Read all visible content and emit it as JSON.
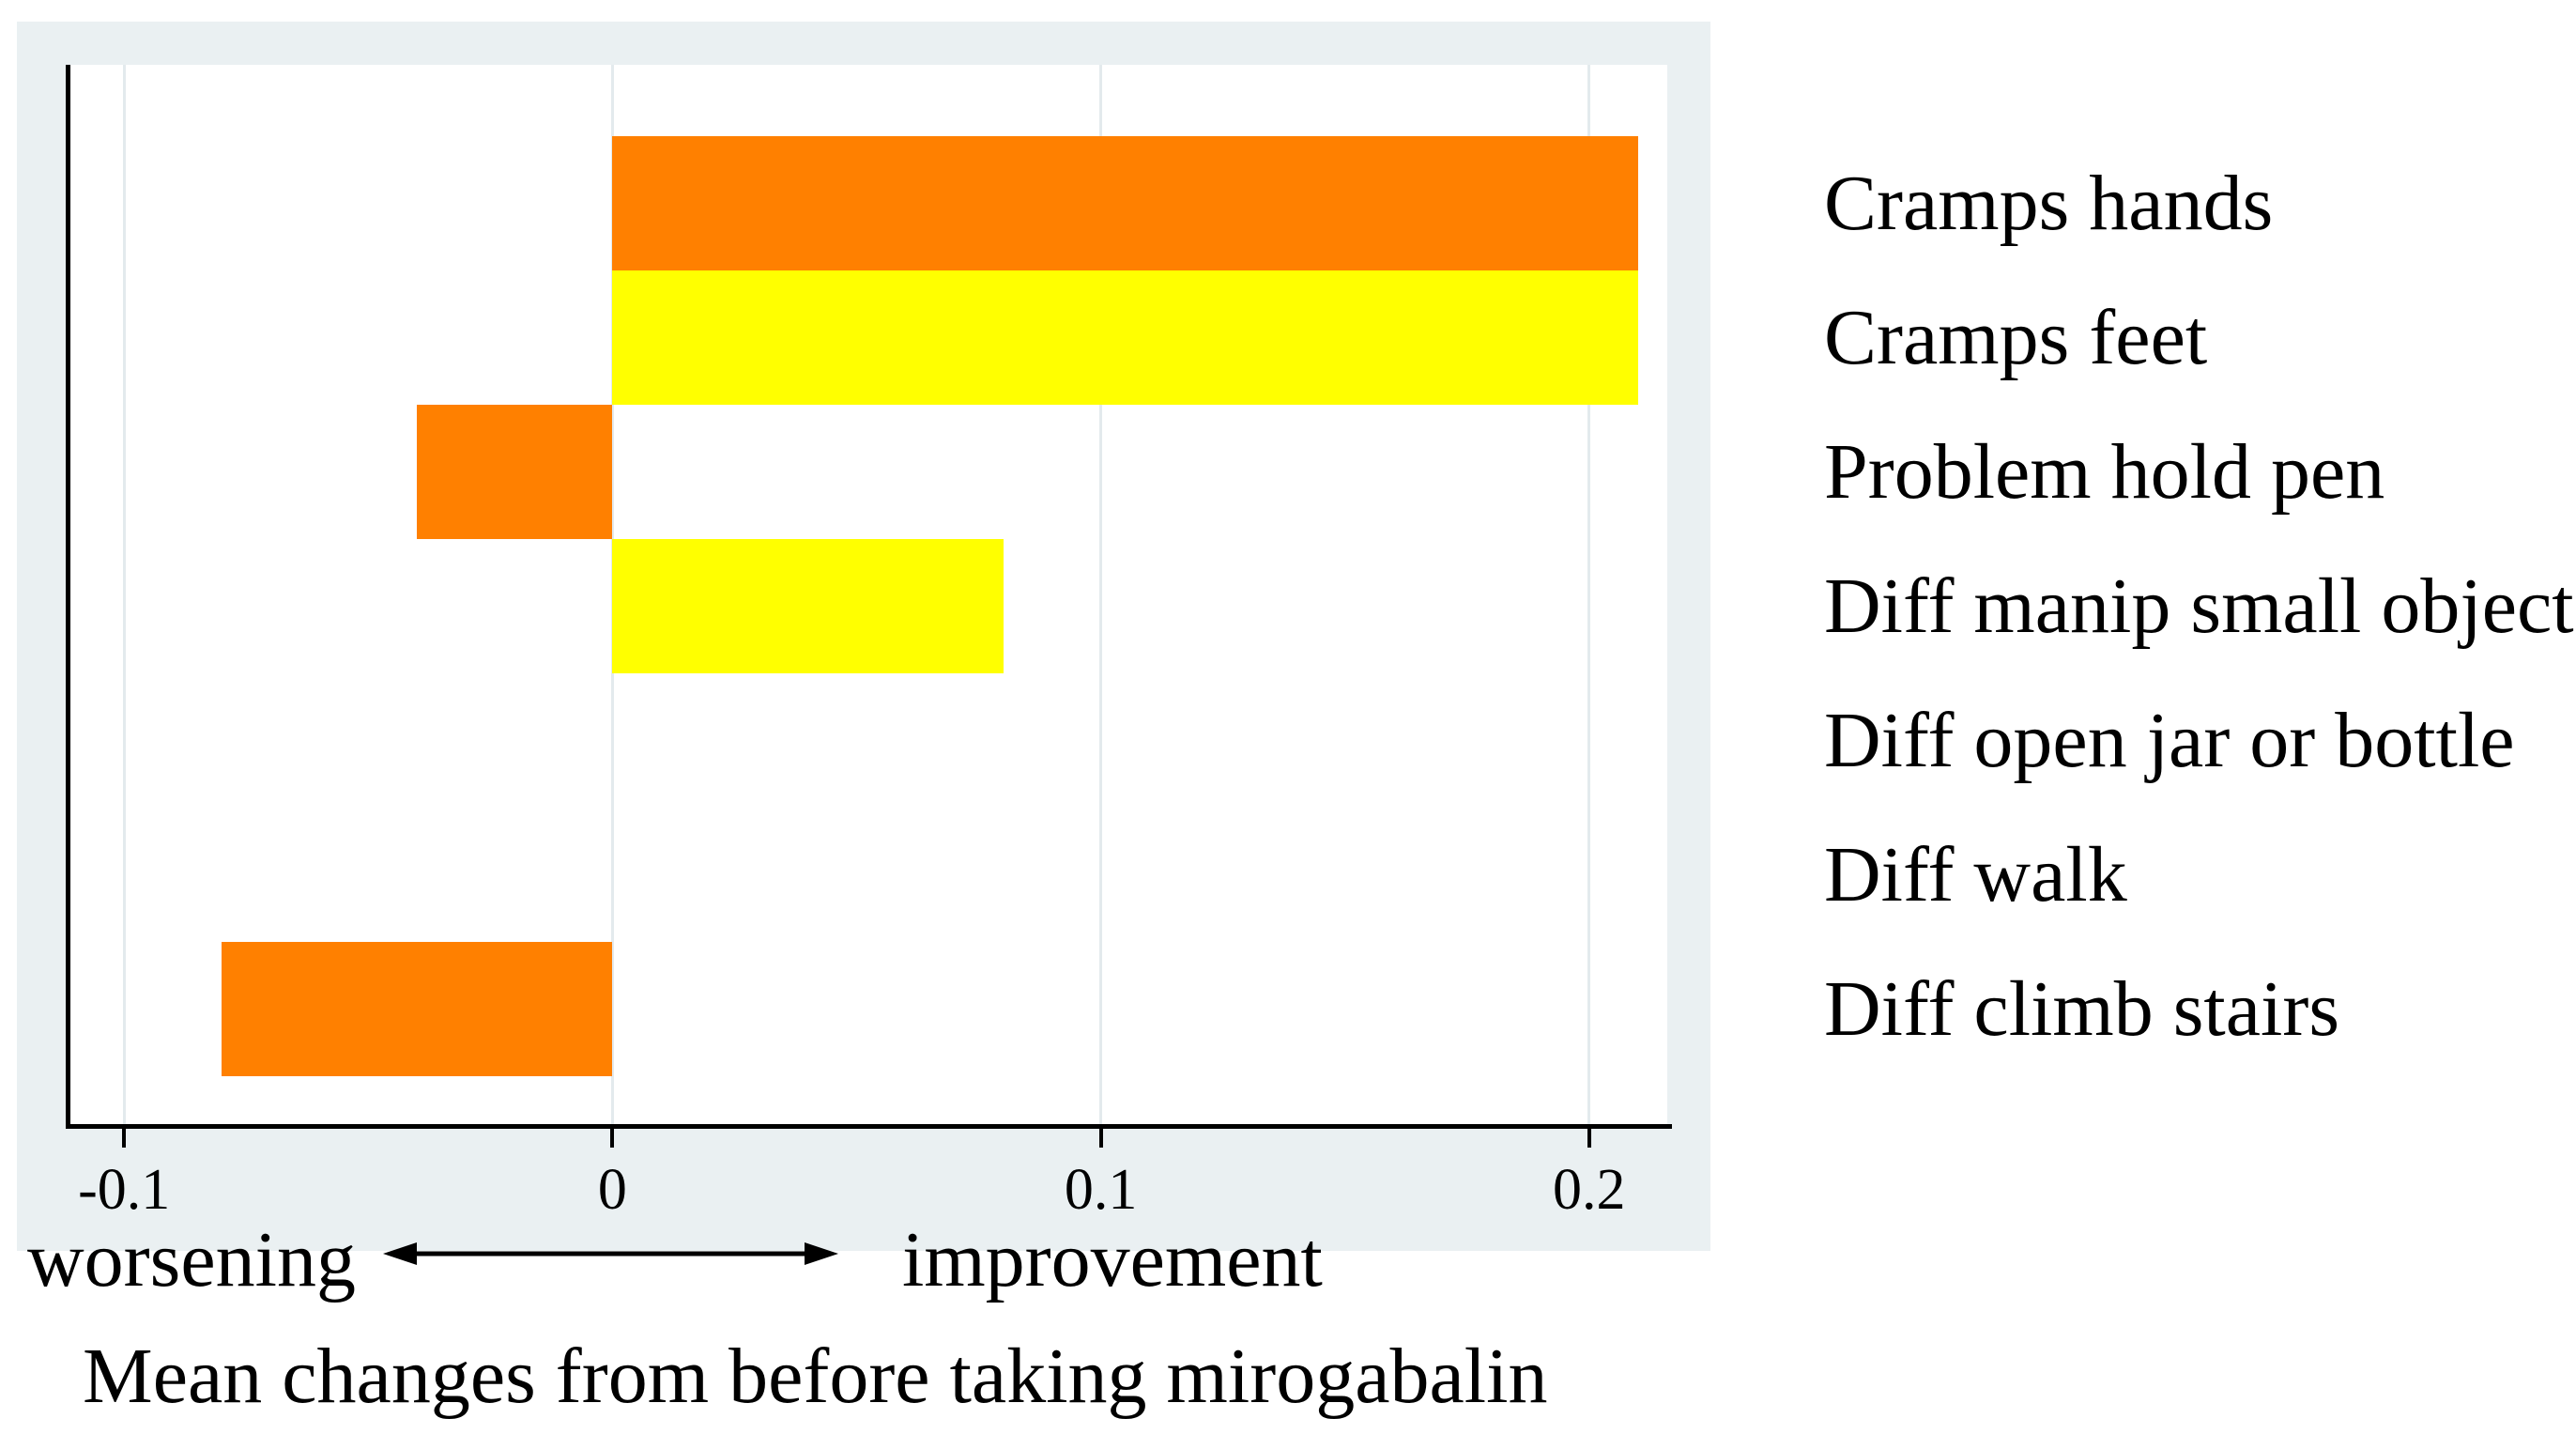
{
  "figure": {
    "background_color": "#eaf0f2",
    "plot_background_color": "#ffffff",
    "axis_color": "#000000",
    "gridline_color": "#e3eaed",
    "text_color": "#000000"
  },
  "chart_data": {
    "type": "bar",
    "orientation": "horizontal",
    "title": "Mean changes from before taking mirogabalin",
    "categories": [
      "Cramps hands",
      "Cramps feet",
      "Problem hold pen",
      "Diff manip small object",
      "Diff open jar or bottle",
      "Diff walk",
      "Diff climb stairs"
    ],
    "values": [
      0.21,
      0.21,
      -0.04,
      0.08,
      0,
      0,
      -0.08
    ],
    "bar_colors": [
      "#ff8000",
      "#ffff00",
      "#ff8000",
      "#ffff00",
      "#ff8000",
      "#ffff00",
      "#ff8000"
    ],
    "x_ticks": [
      -0.1,
      0,
      0.1,
      0.2
    ],
    "x_tick_labels": [
      "-0.1",
      "0",
      "0.1",
      "0.2"
    ],
    "xlim": [
      -0.111,
      0.216
    ],
    "grid": true,
    "legend_position": "none",
    "direction_labels": {
      "left": "worsening",
      "right": "improvement"
    },
    "arrow": "double-headed-horizontal-arrow"
  }
}
